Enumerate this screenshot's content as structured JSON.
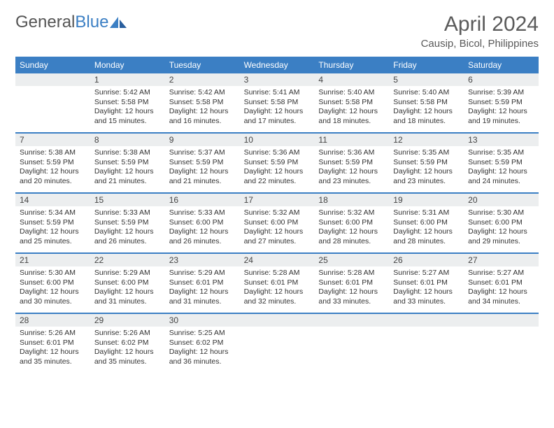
{
  "brand": {
    "name1": "General",
    "name2": "Blue"
  },
  "title": "April 2024",
  "location": "Causip, Bicol, Philippines",
  "colors": {
    "header_bg": "#3b7fc4",
    "daynum_bg": "#eceeef",
    "text": "#333333",
    "title_text": "#5a5a5a",
    "page_bg": "#ffffff"
  },
  "day_names": [
    "Sunday",
    "Monday",
    "Tuesday",
    "Wednesday",
    "Thursday",
    "Friday",
    "Saturday"
  ],
  "weeks": [
    [
      {
        "day": ""
      },
      {
        "day": "1",
        "sunrise": "5:42 AM",
        "sunset": "5:58 PM",
        "daylight": "12 hours and 15 minutes."
      },
      {
        "day": "2",
        "sunrise": "5:42 AM",
        "sunset": "5:58 PM",
        "daylight": "12 hours and 16 minutes."
      },
      {
        "day": "3",
        "sunrise": "5:41 AM",
        "sunset": "5:58 PM",
        "daylight": "12 hours and 17 minutes."
      },
      {
        "day": "4",
        "sunrise": "5:40 AM",
        "sunset": "5:58 PM",
        "daylight": "12 hours and 18 minutes."
      },
      {
        "day": "5",
        "sunrise": "5:40 AM",
        "sunset": "5:58 PM",
        "daylight": "12 hours and 18 minutes."
      },
      {
        "day": "6",
        "sunrise": "5:39 AM",
        "sunset": "5:59 PM",
        "daylight": "12 hours and 19 minutes."
      }
    ],
    [
      {
        "day": "7",
        "sunrise": "5:38 AM",
        "sunset": "5:59 PM",
        "daylight": "12 hours and 20 minutes."
      },
      {
        "day": "8",
        "sunrise": "5:38 AM",
        "sunset": "5:59 PM",
        "daylight": "12 hours and 21 minutes."
      },
      {
        "day": "9",
        "sunrise": "5:37 AM",
        "sunset": "5:59 PM",
        "daylight": "12 hours and 21 minutes."
      },
      {
        "day": "10",
        "sunrise": "5:36 AM",
        "sunset": "5:59 PM",
        "daylight": "12 hours and 22 minutes."
      },
      {
        "day": "11",
        "sunrise": "5:36 AM",
        "sunset": "5:59 PM",
        "daylight": "12 hours and 23 minutes."
      },
      {
        "day": "12",
        "sunrise": "5:35 AM",
        "sunset": "5:59 PM",
        "daylight": "12 hours and 23 minutes."
      },
      {
        "day": "13",
        "sunrise": "5:35 AM",
        "sunset": "5:59 PM",
        "daylight": "12 hours and 24 minutes."
      }
    ],
    [
      {
        "day": "14",
        "sunrise": "5:34 AM",
        "sunset": "5:59 PM",
        "daylight": "12 hours and 25 minutes."
      },
      {
        "day": "15",
        "sunrise": "5:33 AM",
        "sunset": "5:59 PM",
        "daylight": "12 hours and 26 minutes."
      },
      {
        "day": "16",
        "sunrise": "5:33 AM",
        "sunset": "6:00 PM",
        "daylight": "12 hours and 26 minutes."
      },
      {
        "day": "17",
        "sunrise": "5:32 AM",
        "sunset": "6:00 PM",
        "daylight": "12 hours and 27 minutes."
      },
      {
        "day": "18",
        "sunrise": "5:32 AM",
        "sunset": "6:00 PM",
        "daylight": "12 hours and 28 minutes."
      },
      {
        "day": "19",
        "sunrise": "5:31 AM",
        "sunset": "6:00 PM",
        "daylight": "12 hours and 28 minutes."
      },
      {
        "day": "20",
        "sunrise": "5:30 AM",
        "sunset": "6:00 PM",
        "daylight": "12 hours and 29 minutes."
      }
    ],
    [
      {
        "day": "21",
        "sunrise": "5:30 AM",
        "sunset": "6:00 PM",
        "daylight": "12 hours and 30 minutes."
      },
      {
        "day": "22",
        "sunrise": "5:29 AM",
        "sunset": "6:00 PM",
        "daylight": "12 hours and 31 minutes."
      },
      {
        "day": "23",
        "sunrise": "5:29 AM",
        "sunset": "6:01 PM",
        "daylight": "12 hours and 31 minutes."
      },
      {
        "day": "24",
        "sunrise": "5:28 AM",
        "sunset": "6:01 PM",
        "daylight": "12 hours and 32 minutes."
      },
      {
        "day": "25",
        "sunrise": "5:28 AM",
        "sunset": "6:01 PM",
        "daylight": "12 hours and 33 minutes."
      },
      {
        "day": "26",
        "sunrise": "5:27 AM",
        "sunset": "6:01 PM",
        "daylight": "12 hours and 33 minutes."
      },
      {
        "day": "27",
        "sunrise": "5:27 AM",
        "sunset": "6:01 PM",
        "daylight": "12 hours and 34 minutes."
      }
    ],
    [
      {
        "day": "28",
        "sunrise": "5:26 AM",
        "sunset": "6:01 PM",
        "daylight": "12 hours and 35 minutes."
      },
      {
        "day": "29",
        "sunrise": "5:26 AM",
        "sunset": "6:02 PM",
        "daylight": "12 hours and 35 minutes."
      },
      {
        "day": "30",
        "sunrise": "5:25 AM",
        "sunset": "6:02 PM",
        "daylight": "12 hours and 36 minutes."
      },
      {
        "day": ""
      },
      {
        "day": ""
      },
      {
        "day": ""
      },
      {
        "day": ""
      }
    ]
  ],
  "labels": {
    "sunrise": "Sunrise: ",
    "sunset": "Sunset: ",
    "daylight": "Daylight: "
  }
}
